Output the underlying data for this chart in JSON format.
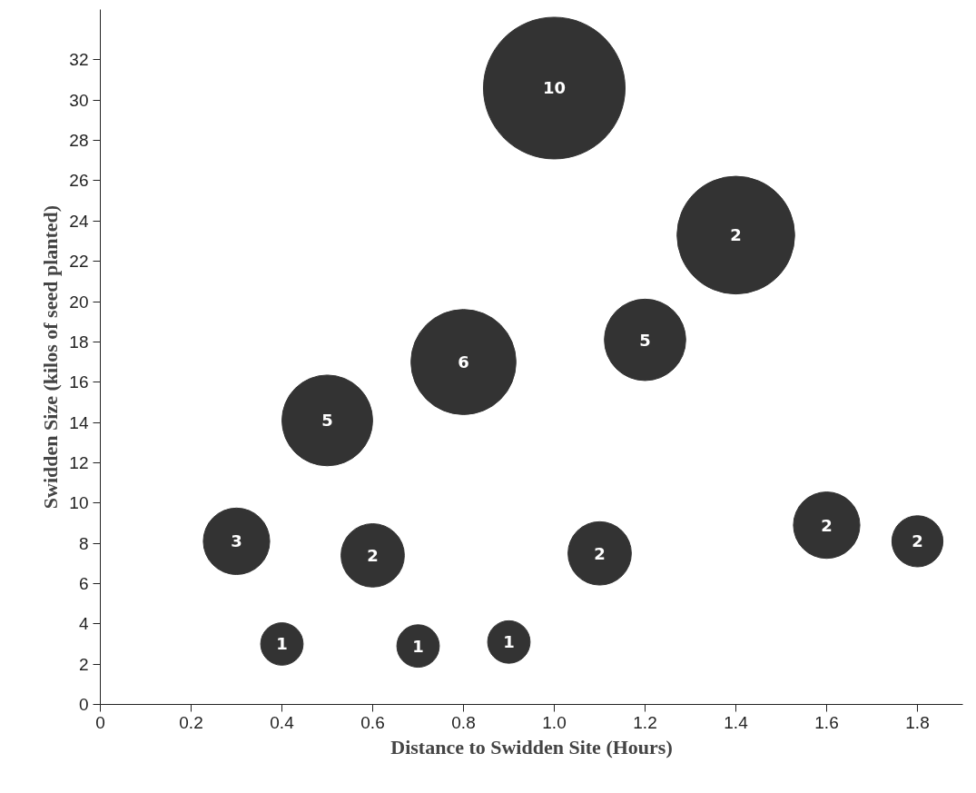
{
  "chart_data": {
    "type": "bubble",
    "xlabel": "Distance to Swidden Site (Hours)",
    "ylabel": "Swidden Size (kilos of seed planted)",
    "x": [
      0.3,
      0.4,
      0.5,
      0.6,
      0.7,
      0.8,
      0.9,
      1.0,
      1.1,
      1.2,
      1.4,
      1.6,
      1.8
    ],
    "values": [
      8.1,
      3.0,
      14.1,
      7.4,
      2.9,
      17.0,
      3.1,
      30.6,
      7.5,
      18.1,
      23.3,
      8.9,
      8.1
    ],
    "sizes": [
      0.22,
      0.09,
      0.41,
      0.2,
      0.09,
      0.55,
      0.09,
      1,
      0.2,
      0.33,
      0.69,
      0.22,
      0.13
    ],
    "annotations": [
      {
        "text": "3",
        "x": 0.3,
        "y": 8.1
      },
      {
        "text": "1",
        "x": 0.4,
        "y": 3.0
      },
      {
        "text": "5",
        "x": 0.5,
        "y": 14.1
      },
      {
        "text": "2",
        "x": 0.6,
        "y": 7.4
      },
      {
        "text": "1",
        "x": 0.7,
        "y": 2.9
      },
      {
        "text": "6",
        "x": 0.8,
        "y": 17.0
      },
      {
        "text": "1",
        "x": 0.9,
        "y": 3.1
      },
      {
        "text": "10",
        "x": 1.0,
        "y": 30.6
      },
      {
        "text": "2",
        "x": 1.1,
        "y": 7.5
      },
      {
        "text": "5",
        "x": 1.2,
        "y": 18.1
      },
      {
        "text": "2",
        "x": 1.4,
        "y": 23.3
      },
      {
        "text": "2",
        "x": 1.6,
        "y": 8.9
      },
      {
        "text": "2",
        "x": 1.8,
        "y": 8.1
      }
    ],
    "color": "#333333",
    "xlim": [
      0,
      1.9
    ],
    "ylim": [
      0,
      34.5
    ],
    "xticks": [
      0,
      0.2,
      0.4,
      0.6,
      0.8,
      {
        "value": 1,
        "label": "1.0"
      },
      1.2,
      1.4,
      1.6,
      1.8
    ],
    "yticks": [
      0,
      2,
      4,
      6,
      8,
      10,
      12,
      14,
      16,
      18,
      20,
      22,
      24,
      26,
      28,
      30,
      32
    ],
    "grid": false
  }
}
